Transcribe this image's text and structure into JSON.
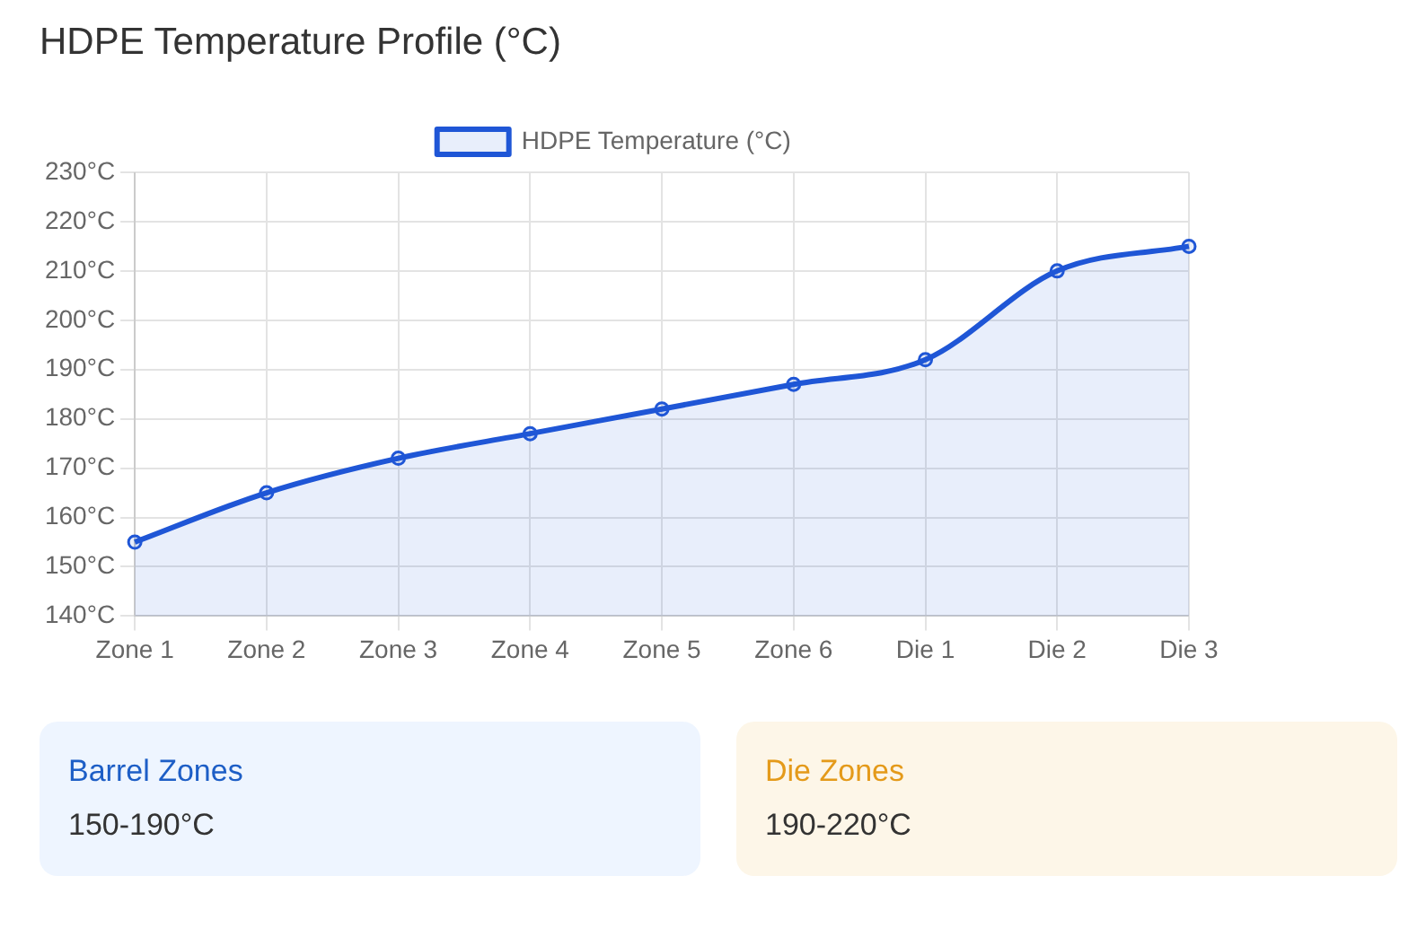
{
  "chart_data": [
    {
      "type": "area",
      "title": "HDPE Temperature Profile (°C)",
      "categories": [
        "Zone 1",
        "Zone 2",
        "Zone 3",
        "Zone 4",
        "Zone 5",
        "Zone 6",
        "Die 1",
        "Die 2",
        "Die 3"
      ],
      "series": [
        {
          "name": "HDPE Temperature (°C)",
          "color": "#1f56d6",
          "values": [
            155,
            165,
            172,
            177,
            182,
            187,
            192,
            210,
            215
          ]
        }
      ],
      "ylim": [
        140,
        230
      ],
      "yticks": [
        {
          "value": 140,
          "label": "140°C"
        },
        {
          "value": 150,
          "label": "150°C"
        },
        {
          "value": 160,
          "label": "160°C"
        },
        {
          "value": 170,
          "label": "170°C"
        },
        {
          "value": 180,
          "label": "180°C"
        },
        {
          "value": 190,
          "label": "190°C"
        },
        {
          "value": 200,
          "label": "200°C"
        },
        {
          "value": 210,
          "label": "210°C"
        },
        {
          "value": 220,
          "label": "220°C"
        },
        {
          "value": 230,
          "label": "230°C"
        }
      ],
      "grid": true,
      "legend": "top",
      "marker": "circle"
    },
    {
      "type": "other",
      "title": "Barrel Zones",
      "annotations": [
        "150-190°C"
      ]
    },
    {
      "type": "other",
      "title": "Die Zones",
      "annotations": [
        "190-220°C"
      ]
    }
  ]
}
